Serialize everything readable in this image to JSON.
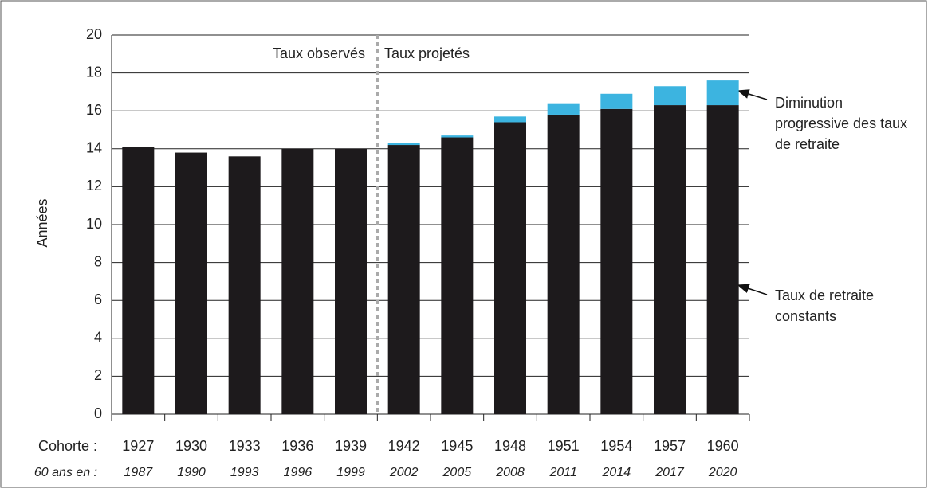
{
  "chart_data": {
    "type": "stacked_bar",
    "y_label": "Années",
    "x_label": "Cohorte :",
    "x2_label": "60 ans en :",
    "section_labels": [
      "Taux observés",
      "Taux projetés"
    ],
    "categories": [
      "1927",
      "1930",
      "1933",
      "1936",
      "1939",
      "1942",
      "1945",
      "1948",
      "1951",
      "1954",
      "1957",
      "1960"
    ],
    "categories2": [
      "1987",
      "1990",
      "1993",
      "1996",
      "1999",
      "2002",
      "2005",
      "2008",
      "2011",
      "2014",
      "2017",
      "2020"
    ],
    "series": [
      {
        "name": "Taux de retraite constants",
        "color": "#1d1a1c",
        "values": [
          14.1,
          13.8,
          13.6,
          14.0,
          14.0,
          14.2,
          14.6,
          15.4,
          15.8,
          16.1,
          16.3,
          16.3
        ]
      },
      {
        "name": "Diminution progressive des taux de retraite",
        "color": "#3cb4e0",
        "values": [
          0,
          0,
          0,
          0,
          0,
          0.1,
          0.1,
          0.3,
          0.6,
          0.8,
          1.0,
          1.3
        ]
      }
    ],
    "ylim": [
      0,
      20
    ],
    "yticks": [
      0,
      2,
      4,
      6,
      8,
      10,
      12,
      14,
      16,
      18,
      20
    ],
    "grid": true
  }
}
